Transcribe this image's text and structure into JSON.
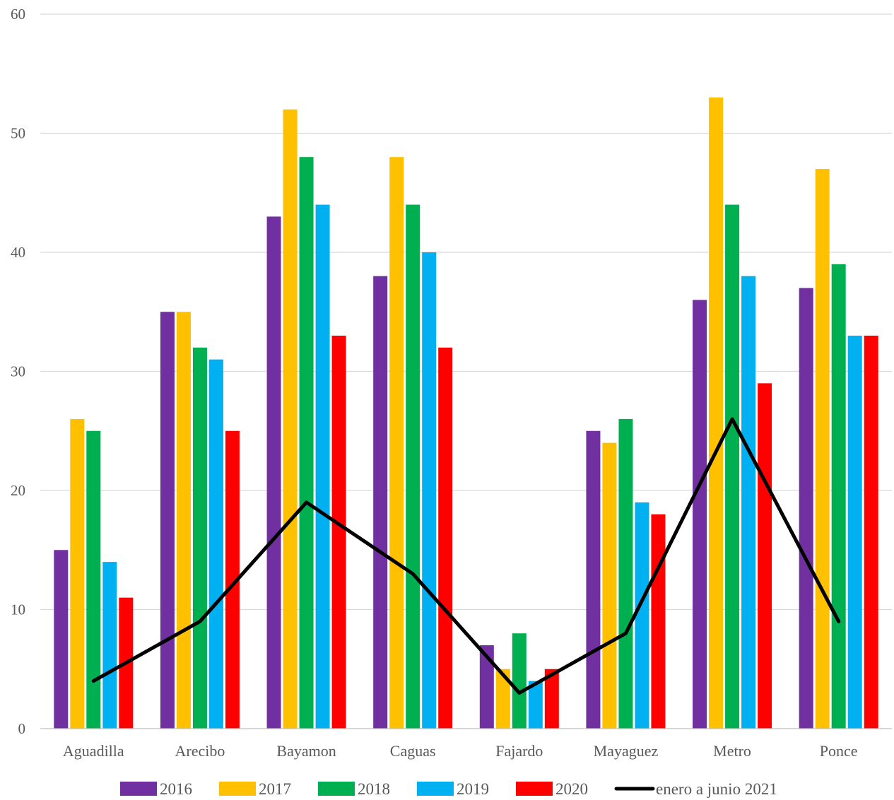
{
  "chart_data": {
    "type": "bar",
    "title": "",
    "xlabel": "",
    "ylabel": "",
    "ylim": [
      0,
      60
    ],
    "yticks": [
      0,
      10,
      20,
      30,
      40,
      50,
      60
    ],
    "grid": true,
    "legend_position": "bottom",
    "categories": [
      "Aguadilla",
      "Arecibo",
      "Bayamon",
      "Caguas",
      "Fajardo",
      "Mayaguez",
      "Metro",
      "Ponce"
    ],
    "series": [
      {
        "name": "2016",
        "type": "bar",
        "color": "#7030A0",
        "values": [
          15,
          35,
          43,
          38,
          7,
          25,
          36,
          37
        ]
      },
      {
        "name": "2017",
        "type": "bar",
        "color": "#FFC000",
        "values": [
          26,
          35,
          52,
          48,
          5,
          24,
          53,
          47
        ]
      },
      {
        "name": "2018",
        "type": "bar",
        "color": "#00B050",
        "values": [
          25,
          32,
          48,
          44,
          8,
          26,
          44,
          39
        ]
      },
      {
        "name": "2019",
        "type": "bar",
        "color": "#00B0F0",
        "values": [
          14,
          31,
          44,
          40,
          4,
          19,
          38,
          33
        ]
      },
      {
        "name": "2020",
        "type": "bar",
        "color": "#FF0000",
        "values": [
          11,
          25,
          33,
          32,
          5,
          18,
          29,
          33
        ]
      },
      {
        "name": "enero a junio 2021",
        "type": "line",
        "color": "#000000",
        "values": [
          4,
          9,
          19,
          13,
          3,
          8,
          26,
          9
        ]
      }
    ]
  }
}
